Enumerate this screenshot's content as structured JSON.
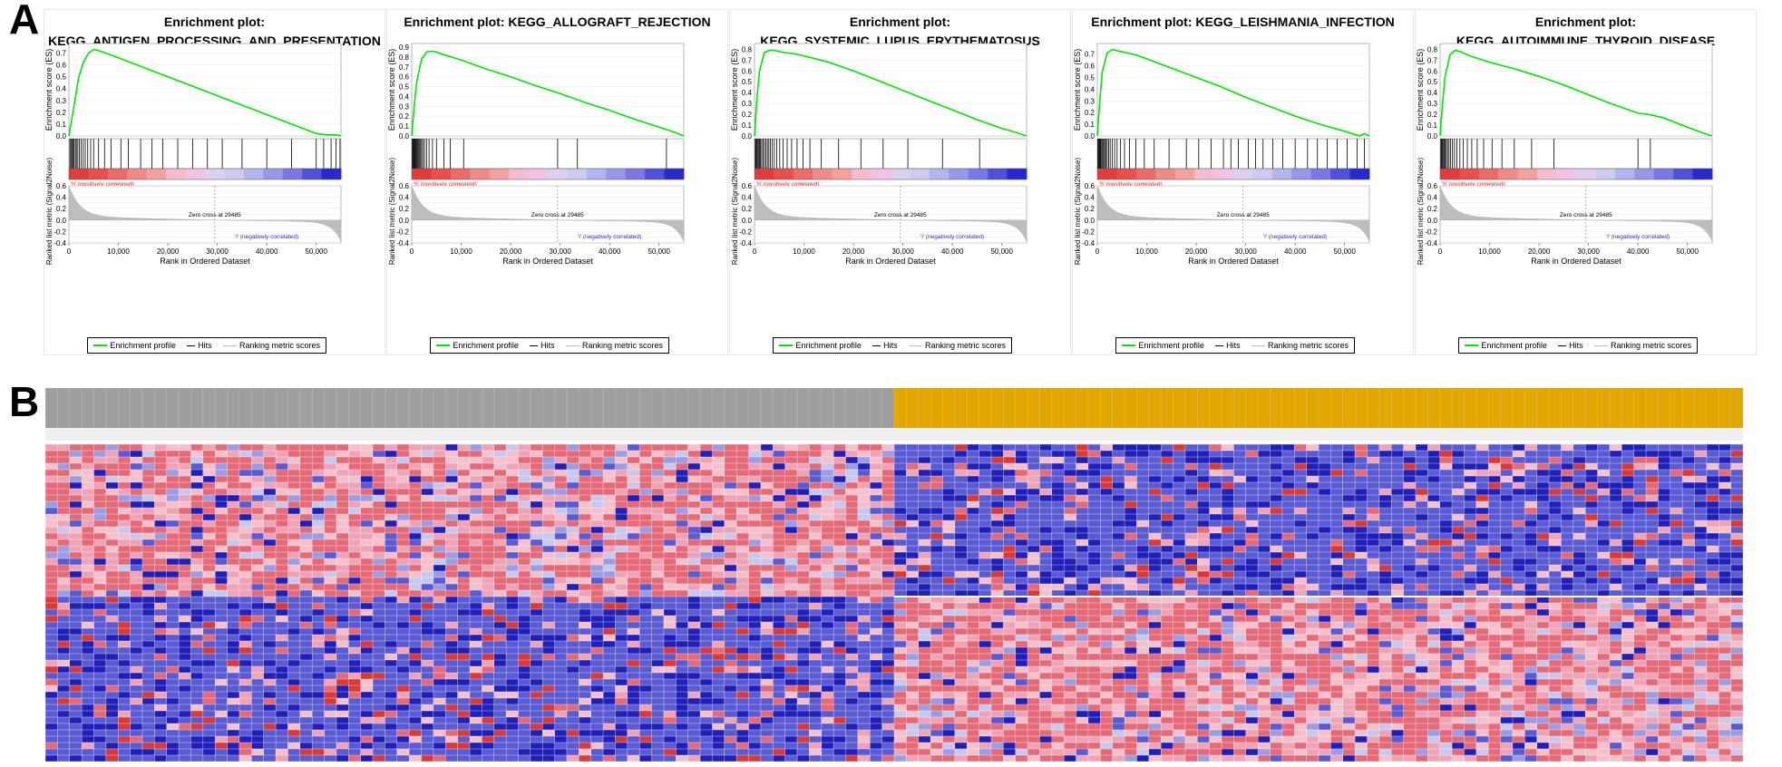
{
  "panel_labels": {
    "a": "A",
    "b": "B"
  },
  "chart_data": [
    {
      "type": "line",
      "title": "Enrichment plot:",
      "title_line2": "KEGG_ANTIGEN_PROCESSING_AND_PRESENTATION",
      "ylabel": "Enrichment score (ES)",
      "ylabel2": "Ranked list metric (Signal2Noise)",
      "xlabel": "Rank in Ordered Dataset",
      "es_ylim": [
        0.0,
        0.75
      ],
      "es_ticks": [
        0.0,
        0.1,
        0.2,
        0.3,
        0.4,
        0.5,
        0.6,
        0.7
      ],
      "es_curve": {
        "x": [
          0,
          1000,
          2000,
          3000,
          4000,
          5000,
          6000,
          8000,
          10000,
          15000,
          20000,
          25000,
          30000,
          35000,
          40000,
          45000,
          50000,
          52000,
          54000,
          55000
        ],
        "y": [
          0.0,
          0.25,
          0.5,
          0.63,
          0.7,
          0.73,
          0.72,
          0.69,
          0.66,
          0.58,
          0.5,
          0.42,
          0.34,
          0.26,
          0.18,
          0.1,
          0.02,
          0.01,
          0.01,
          0.0
        ]
      },
      "hits": [
        200,
        400,
        600,
        800,
        1000,
        1300,
        1500,
        1800,
        2100,
        2500,
        2900,
        3300,
        3800,
        4400,
        5000,
        6000,
        7200,
        8500,
        10500,
        12000,
        14500,
        16800,
        19000,
        22000,
        25000,
        28000,
        31000,
        35000,
        40000,
        45000,
        50000,
        51500,
        53000,
        54000,
        54800
      ],
      "ranked_ylim": [
        -0.4,
        0.6
      ],
      "ranked_ticks": [
        -0.4,
        -0.3,
        -0.2,
        -0.1,
        0.0,
        0.1,
        0.2,
        0.3,
        0.4,
        0.5,
        0.6
      ],
      "x_ticks": [
        0,
        10000,
        20000,
        30000,
        40000,
        50000
      ],
      "x_tick_labels": [
        "0",
        "10,000",
        "20,000",
        "30,000",
        "40,000",
        "50,000"
      ],
      "zero_cross": 29485,
      "zero_cross_label": "Zero cross at 29485",
      "pos_label": "'h' (positively correlated)",
      "neg_label": "'l' (negatively correlated)",
      "legend": [
        "Enrichment profile",
        "Hits",
        "Ranking metric scores"
      ],
      "colors": {
        "es": "#00e600",
        "hits": "#000000",
        "metric": "#bdbdbd"
      }
    },
    {
      "type": "line",
      "title": "Enrichment plot: KEGG_ALLOGRAFT_REJECTION",
      "title_line2": "",
      "ylabel": "Enrichment score (ES)",
      "ylabel2": "Ranked list metric (Signal2Noise)",
      "xlabel": "Rank in Ordered Dataset",
      "es_ylim": [
        0.0,
        0.9
      ],
      "es_ticks": [
        0.0,
        0.1,
        0.2,
        0.3,
        0.4,
        0.5,
        0.6,
        0.7,
        0.8,
        0.9
      ],
      "es_curve": {
        "x": [
          0,
          500,
          1000,
          2000,
          3000,
          4000,
          5000,
          6000,
          8000,
          10000,
          15000,
          20000,
          25000,
          30000,
          35000,
          40000,
          45000,
          50000,
          53000,
          55000
        ],
        "y": [
          0.0,
          0.3,
          0.55,
          0.78,
          0.85,
          0.86,
          0.85,
          0.83,
          0.8,
          0.77,
          0.68,
          0.6,
          0.51,
          0.43,
          0.34,
          0.26,
          0.17,
          0.09,
          0.04,
          0.0
        ]
      },
      "hits": [
        100,
        250,
        400,
        550,
        700,
        850,
        1000,
        1200,
        1400,
        1600,
        1800,
        2000,
        2300,
        2600,
        3000,
        3500,
        4200,
        5000,
        6500,
        7800,
        10500,
        29500,
        33500,
        51500
      ],
      "ranked_ylim": [
        -0.4,
        0.6
      ],
      "ranked_ticks": [
        -0.4,
        -0.3,
        -0.2,
        -0.1,
        0.0,
        0.1,
        0.2,
        0.3,
        0.4,
        0.5,
        0.6
      ],
      "x_ticks": [
        0,
        10000,
        20000,
        30000,
        40000,
        50000
      ],
      "x_tick_labels": [
        "0",
        "10,000",
        "20,000",
        "30,000",
        "40,000",
        "50,000"
      ],
      "zero_cross": 29485,
      "zero_cross_label": "Zero cross at 29485",
      "pos_label": "'h' (positively correlated)",
      "neg_label": "'l' (negatively correlated)",
      "legend": [
        "Enrichment profile",
        "Hits",
        "Ranking metric scores"
      ],
      "colors": {
        "es": "#00e600",
        "hits": "#000000",
        "metric": "#bdbdbd"
      }
    },
    {
      "type": "line",
      "title": "Enrichment plot:",
      "title_line2": "KEGG_SYSTEMIC_LUPUS_ERYTHEMATOSUS",
      "ylabel": "Enrichment score (ES)",
      "ylabel2": "Ranked list metric (Signal2Noise)",
      "xlabel": "Rank in Ordered Dataset",
      "es_ylim": [
        0.0,
        0.82
      ],
      "es_ticks": [
        0.0,
        0.1,
        0.2,
        0.3,
        0.4,
        0.5,
        0.6,
        0.7,
        0.8
      ],
      "es_curve": {
        "x": [
          0,
          500,
          1000,
          2000,
          3000,
          4000,
          5000,
          6000,
          8000,
          10000,
          15000,
          20000,
          25000,
          30000,
          35000,
          40000,
          45000,
          50000,
          53000,
          55000
        ],
        "y": [
          0.0,
          0.35,
          0.6,
          0.77,
          0.79,
          0.79,
          0.78,
          0.77,
          0.76,
          0.74,
          0.68,
          0.6,
          0.51,
          0.42,
          0.33,
          0.24,
          0.15,
          0.07,
          0.03,
          0.0
        ]
      },
      "hits": [
        150,
        300,
        450,
        600,
        800,
        1000,
        1200,
        1450,
        1700,
        2000,
        2300,
        2600,
        2900,
        3200,
        3600,
        4000,
        4500,
        5100,
        5800,
        6600,
        7500,
        8600,
        9800,
        11200,
        13500,
        17000,
        21500,
        26000,
        31000,
        38000,
        45500
      ],
      "ranked_ylim": [
        -0.4,
        0.6
      ],
      "ranked_ticks": [
        -0.4,
        -0.3,
        -0.2,
        -0.1,
        0.0,
        0.1,
        0.2,
        0.3,
        0.4,
        0.5,
        0.6
      ],
      "x_ticks": [
        0,
        10000,
        20000,
        30000,
        40000,
        50000
      ],
      "x_tick_labels": [
        "0",
        "10,000",
        "20,000",
        "30,000",
        "40,000",
        "50,000"
      ],
      "zero_cross": 29485,
      "zero_cross_label": "Zero cross at 29485",
      "pos_label": "'h' (positively correlated)",
      "neg_label": "'l' (negatively correlated)",
      "legend": [
        "Enrichment profile",
        "Hits",
        "Ranking metric scores"
      ],
      "colors": {
        "es": "#00e600",
        "hits": "#000000",
        "metric": "#bdbdbd"
      }
    },
    {
      "type": "line",
      "title": "Enrichment plot: KEGG_LEISHMANIA_INFECTION",
      "title_line2": "",
      "ylabel": "Enrichment score (ES)",
      "ylabel2": "Ranked list metric (Signal2Noise)",
      "xlabel": "Rank in Ordered Dataset",
      "es_ylim": [
        0.0,
        0.76
      ],
      "es_ticks": [
        0.0,
        0.1,
        0.2,
        0.3,
        0.4,
        0.5,
        0.6,
        0.7
      ],
      "es_curve": {
        "x": [
          0,
          500,
          1000,
          2000,
          3000,
          4000,
          5000,
          6000,
          8000,
          10000,
          15000,
          20000,
          25000,
          30000,
          35000,
          40000,
          45000,
          50000,
          53000,
          54000,
          55000
        ],
        "y": [
          0.0,
          0.3,
          0.55,
          0.71,
          0.74,
          0.73,
          0.72,
          0.71,
          0.69,
          0.66,
          0.58,
          0.5,
          0.42,
          0.33,
          0.25,
          0.17,
          0.1,
          0.04,
          0.0,
          0.02,
          0.0
        ]
      },
      "hits": [
        100,
        250,
        400,
        550,
        700,
        900,
        1100,
        1300,
        1500,
        1750,
        2000,
        2300,
        2600,
        3000,
        3500,
        4000,
        4700,
        5500,
        6500,
        7800,
        9500,
        11500,
        14500,
        18000,
        20500,
        23000,
        25500,
        27000,
        28500,
        30500,
        32000,
        33500,
        35500,
        37500,
        40000,
        42500,
        44500,
        46500,
        48500,
        50500,
        52500,
        54000
      ],
      "ranked_ylim": [
        -0.4,
        0.6
      ],
      "ranked_ticks": [
        -0.4,
        -0.3,
        -0.2,
        -0.1,
        0.0,
        0.1,
        0.2,
        0.3,
        0.4,
        0.5,
        0.6
      ],
      "x_ticks": [
        0,
        10000,
        20000,
        30000,
        40000,
        50000
      ],
      "x_tick_labels": [
        "0",
        "10,000",
        "20,000",
        "30,000",
        "40,000",
        "50,000"
      ],
      "zero_cross": 29485,
      "zero_cross_label": "Zero cross at 29485",
      "pos_label": "'h' (positively correlated)",
      "neg_label": "'l' (negatively correlated)",
      "legend": [
        "Enrichment profile",
        "Hits",
        "Ranking metric scores"
      ],
      "colors": {
        "es": "#00e600",
        "hits": "#000000",
        "metric": "#bdbdbd"
      }
    },
    {
      "type": "line",
      "title": "Enrichment plot:",
      "title_line2": "KEGG_AUTOIMMUNE_THYROID_DISEASE",
      "ylabel": "Enrichment score (ES)",
      "ylabel2": "Ranked list metric (Signal2Noise)",
      "xlabel": "Rank in Ordered Dataset",
      "es_ylim": [
        0.0,
        0.82
      ],
      "es_ticks": [
        0.0,
        0.1,
        0.2,
        0.3,
        0.4,
        0.5,
        0.6,
        0.7,
        0.8
      ],
      "es_curve": {
        "x": [
          0,
          500,
          1000,
          2000,
          3000,
          4000,
          5000,
          6000,
          8000,
          10000,
          15000,
          20000,
          25000,
          30000,
          35000,
          40000,
          42000,
          45000,
          50000,
          53000,
          55000
        ],
        "y": [
          0.0,
          0.3,
          0.55,
          0.75,
          0.79,
          0.78,
          0.76,
          0.74,
          0.71,
          0.68,
          0.62,
          0.55,
          0.47,
          0.38,
          0.29,
          0.21,
          0.2,
          0.17,
          0.08,
          0.03,
          0.0
        ]
      },
      "hits": [
        150,
        300,
        450,
        600,
        800,
        1000,
        1250,
        1500,
        1800,
        2100,
        2500,
        2900,
        3400,
        4000,
        4700,
        5500,
        6400,
        7500,
        8800,
        10500,
        12500,
        15000,
        18500,
        23000,
        40000,
        42500
      ],
      "ranked_ylim": [
        -0.4,
        0.6
      ],
      "ranked_ticks": [
        -0.4,
        -0.3,
        -0.2,
        -0.1,
        0.0,
        0.1,
        0.2,
        0.3,
        0.4,
        0.5,
        0.6
      ],
      "x_ticks": [
        0,
        10000,
        20000,
        30000,
        40000,
        50000
      ],
      "x_tick_labels": [
        "0",
        "10,000",
        "20,000",
        "30,000",
        "40,000",
        "50,000"
      ],
      "zero_cross": 29485,
      "zero_cross_label": "Zero cross at 29485",
      "pos_label": "'h' (positively correlated)",
      "neg_label": "'l' (negatively correlated)",
      "legend": [
        "Enrichment profile",
        "Hits",
        "Ranking metric scores"
      ],
      "colors": {
        "es": "#00e600",
        "hits": "#000000",
        "metric": "#bdbdbd"
      }
    },
    {
      "type": "heatmap",
      "groups": [
        {
          "name": "",
          "samples": 70,
          "color": "#9e9e9e"
        },
        {
          "name": "",
          "samples": 70,
          "color": "#e0a800"
        }
      ],
      "gene_blocks": [
        {
          "genes": 24,
          "pattern_group1": "up",
          "pattern_group2": "down"
        },
        {
          "genes": 26,
          "pattern_group1": "down",
          "pattern_group2": "up"
        }
      ],
      "colors": {
        "high": "#e03030",
        "mid_high": "#f0b0c0",
        "low": "#3030c0",
        "mid_low": "#a0a0e0",
        "grid": "#ffffff"
      }
    }
  ]
}
